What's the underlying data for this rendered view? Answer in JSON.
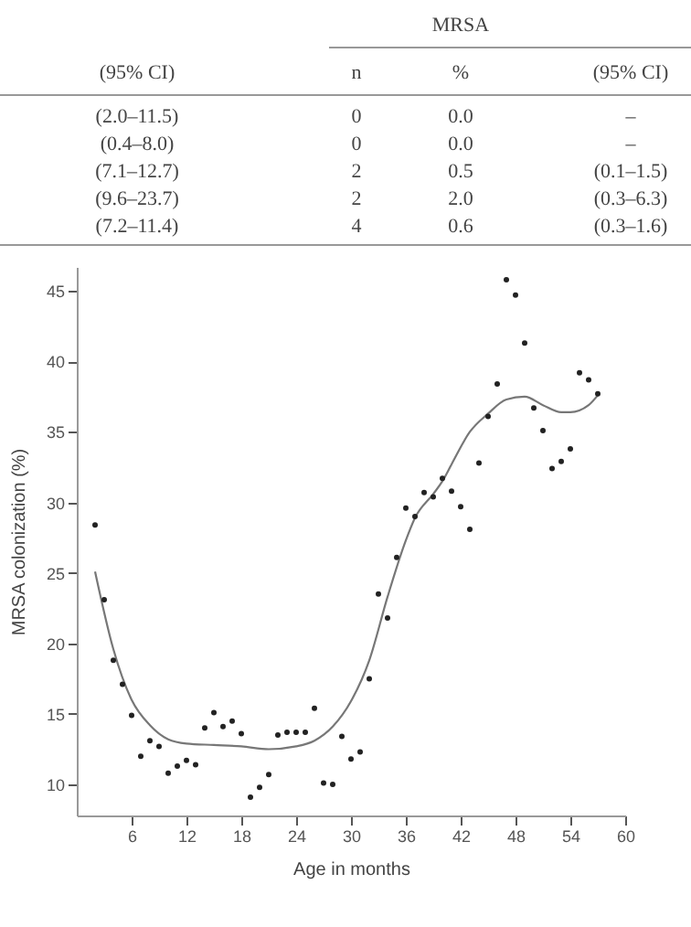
{
  "chart_data": [
    {
      "type": "other",
      "title": "MRSA",
      "annotations": [
        "(95% CI)",
        "n",
        "%",
        "(95% CI)",
        "(2.0–11.5)",
        "0",
        "0.0",
        "–",
        "(0.4–8.0)",
        "0",
        "0.0",
        "–",
        "(7.1–12.7)",
        "2",
        "0.5",
        "(0.1–1.5)",
        "(9.6–23.7)",
        "2",
        "2.0",
        "(0.3–6.3)",
        "(7.2–11.4)",
        "4",
        "0.6",
        "(0.3–1.6)"
      ]
    },
    {
      "type": "scatter",
      "xlabel": "Age in months",
      "ylabel": "MRSA colonization (%)",
      "xlim": [
        0,
        60
      ],
      "ylim": [
        7.8,
        46.7
      ],
      "xticks": [
        6,
        12,
        18,
        24,
        30,
        36,
        42,
        48,
        54,
        60
      ],
      "yticks": [
        10,
        15,
        20,
        25,
        30,
        35,
        40,
        45
      ],
      "grid": false,
      "series": [
        {
          "type": "scatter",
          "color": "#222222",
          "marker": "circle",
          "x": [
            2,
            3,
            4,
            5,
            6,
            7,
            8,
            9,
            10,
            11,
            12,
            13,
            14,
            15,
            16,
            17,
            18,
            19,
            20,
            21,
            22,
            23,
            24,
            25,
            26,
            27,
            28,
            29,
            30,
            31,
            32,
            33,
            34,
            35,
            36,
            37,
            38,
            39,
            40,
            41,
            42,
            43,
            44,
            45,
            46,
            47,
            48,
            49,
            50,
            51,
            52,
            53,
            54,
            55,
            56,
            57
          ],
          "values": [
            28.4,
            23.1,
            18.8,
            17.1,
            14.9,
            12.0,
            13.1,
            12.7,
            10.8,
            11.3,
            11.7,
            11.4,
            14.0,
            15.1,
            14.1,
            14.5,
            13.6,
            9.1,
            9.8,
            10.7,
            13.5,
            13.7,
            13.7,
            13.7,
            15.4,
            10.1,
            10.0,
            13.4,
            11.8,
            12.3,
            17.5,
            23.5,
            21.8,
            26.1,
            29.6,
            29.0,
            30.7,
            30.4,
            31.7,
            30.8,
            29.7,
            28.1,
            32.8,
            36.1,
            38.4,
            45.8,
            44.7,
            41.3,
            36.7,
            35.1,
            32.4,
            32.9,
            33.8,
            39.2,
            38.7,
            37.7
          ]
        },
        {
          "type": "line",
          "color": "#777777",
          "line_style": "solid",
          "x": [
            2,
            4,
            6,
            8,
            10,
            12,
            15,
            18,
            21,
            24,
            26,
            28,
            30,
            32,
            34,
            36,
            37,
            39,
            40,
            41,
            43,
            45,
            47,
            49,
            51,
            53,
            54,
            56,
            57
          ],
          "values": [
            25.1,
            19.6,
            16.0,
            14.2,
            13.2,
            12.9,
            12.8,
            12.7,
            12.5,
            12.7,
            13.1,
            14.1,
            15.9,
            18.8,
            23.3,
            27.3,
            28.9,
            30.6,
            31.5,
            32.7,
            35.0,
            36.3,
            37.3,
            37.5,
            36.9,
            36.4,
            36.4,
            36.9,
            37.6
          ]
        }
      ]
    }
  ]
}
